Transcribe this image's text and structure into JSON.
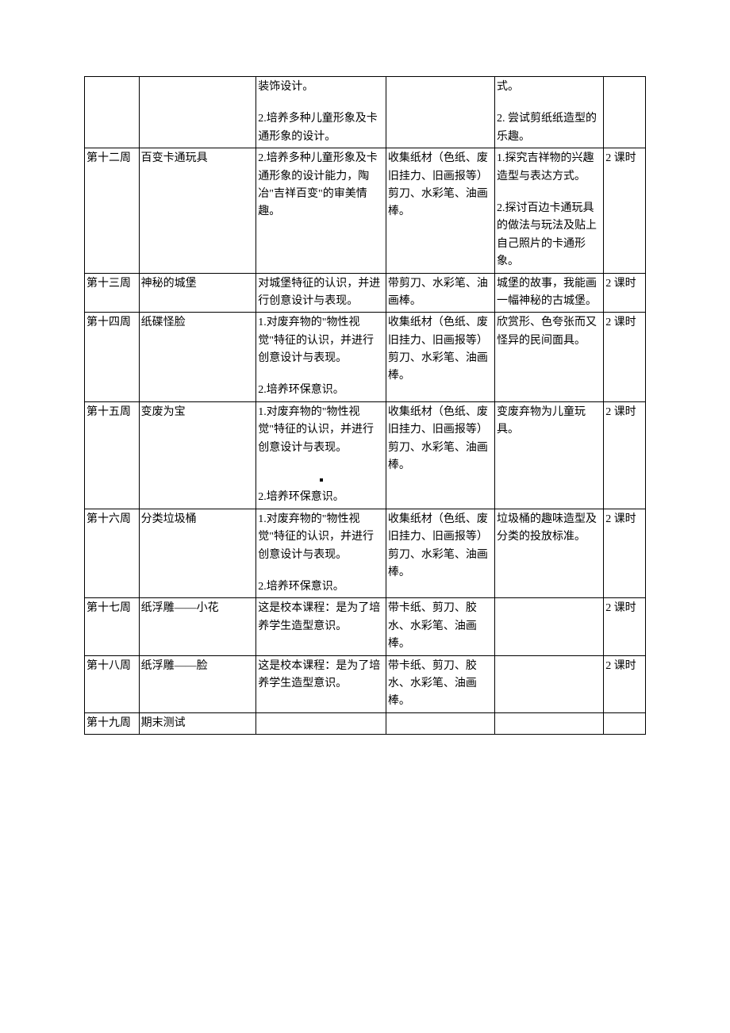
{
  "table": {
    "columns_width": [
      "65px",
      "140px",
      "155px",
      "130px",
      "130px",
      "50px"
    ],
    "font_size": 14,
    "border_color": "#000000",
    "background_color": "#ffffff",
    "rows": [
      {
        "week": "",
        "title": "",
        "goal_p1": "装饰设计。",
        "goal_p2": "2.培养多种儿童形象及卡通形象的设计。",
        "material": "",
        "method_p1": "式。",
        "method_p2": "2.  尝试剪纸纸造型的乐趣。",
        "time": ""
      },
      {
        "week": "第十二周",
        "title": "百变卡通玩具",
        "goal_p1": "2.培养多种儿童形象及卡通形象的设计能力，陶冶\"吉祥百变\"的审美情趣。",
        "material": "收集纸材（色纸、废旧挂力、旧画报等）剪刀、水彩笔、油画棒。",
        "method_p1": "1.探究吉祥物的兴趣造型与表达方式。",
        "method_p2": "2.探讨百边卡通玩具的做法与玩法及贴上自己照片的卡通形象。",
        "time": "2 课时"
      },
      {
        "week": "第十三周",
        "title": "神秘的城堡",
        "goal_p1": "对城堡特征的认识，并进行创意设计与表现。",
        "material": "带剪刀、水彩笔、油画棒。",
        "method_p1": "城堡的故事，我能画一幅神秘的古城堡。",
        "time": "2 课时"
      },
      {
        "week": "第十四周",
        "title": "纸碟怪脸",
        "goal_p1": "1.对废弃物的\"物性视觉\"特征的认识，并进行创意设计与表现。",
        "goal_p2": "2.培养环保意识。",
        "material": "收集纸材（色纸、废旧挂力、旧画报等）剪刀、水彩笔、油画棒。",
        "method_p1": "欣赏形、色夸张而又怪异的民间面具。",
        "time": "2 课时"
      },
      {
        "week": "第十五周",
        "title": "变废为宝",
        "goal_p1": "1.对废弃物的\"物性视觉\"特征的认识，并进行创意设计与表现。",
        "goal_dot": true,
        "goal_p2": "2.培养环保意识。",
        "material": "收集纸材（色纸、废旧挂力、旧画报等）剪刀、水彩笔、油画棒。",
        "method_p1": "变废弃物为儿童玩具。",
        "time": "2 课时"
      },
      {
        "week": "第十六周",
        "title": "分类垃圾桶",
        "goal_p1": "1.对废弃物的\"物性视觉\"特征的认识，并进行创意设计与表现。",
        "goal_p2": "2.培养环保意识。",
        "material": "收集纸材（色纸、废旧挂力、旧画报等）剪刀、水彩笔、油画棒。",
        "method_p1": "垃圾桶的趣味造型及分类的投放标准。",
        "time": "2 课时"
      },
      {
        "week": "第十七周",
        "title": "纸浮雕——小花",
        "goal_p1": "这是校本课程：是为了培养学生造型意识。",
        "material": "带卡纸、剪刀、胶水、水彩笔、油画棒。",
        "method_p1": "",
        "time": "2 课时"
      },
      {
        "week": "第十八周",
        "title": "纸浮雕——脸",
        "goal_p1": "这是校本课程：是为了培养学生造型意识。",
        "material": "带卡纸、剪刀、胶水、水彩笔、油画棒。",
        "method_p1": "",
        "time": "2 课时"
      },
      {
        "week": "第十九周",
        "title": "期末测试",
        "goal_p1": "",
        "material": "",
        "method_p1": "",
        "time": ""
      }
    ]
  }
}
